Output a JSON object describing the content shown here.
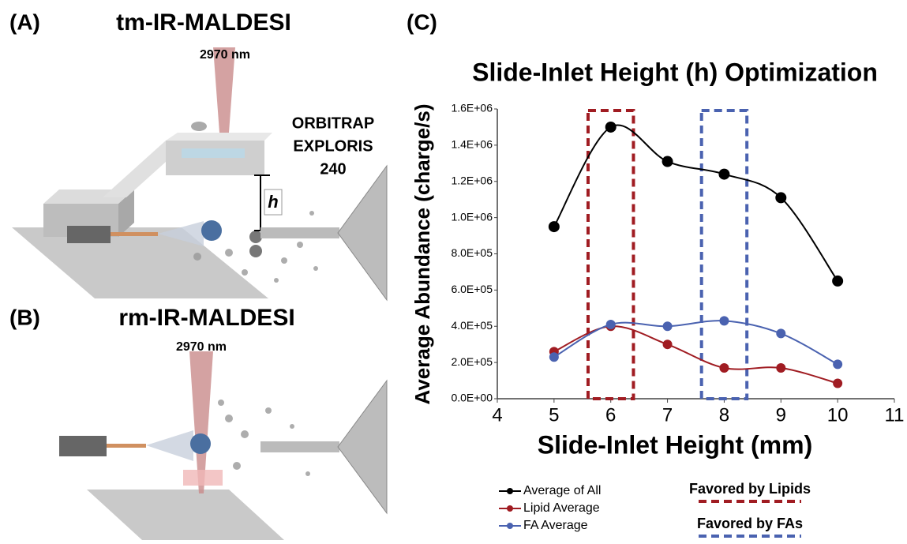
{
  "panels": {
    "a_label": "(A)",
    "a_title": "tm-IR-MALDESI",
    "a_wavelength": "2970 nm",
    "instrument": [
      "ORBITRAP",
      "EXPLORIS",
      "240"
    ],
    "height_symbol": "h",
    "b_label": "(B)",
    "b_title": "rm-IR-MALDESI",
    "b_wavelength": "2970 nm",
    "c_label": "(C)"
  },
  "chart_data": {
    "type": "line",
    "title": "Slide-Inlet Height (h) Optimization",
    "x_label": "Slide-Inlet Height (mm)",
    "y_label": "Average Abundance (charge/s)",
    "x": [
      5,
      6,
      7,
      8,
      9,
      10
    ],
    "series": [
      {
        "name": "Average of All",
        "color": "#000000",
        "values": [
          950000,
          1500000,
          1310000,
          1240000,
          1110000,
          650000
        ]
      },
      {
        "name": "Lipid Average",
        "color": "#a01c22",
        "values": [
          260000,
          400000,
          300000,
          170000,
          170000,
          85000
        ]
      },
      {
        "name": "FA Average",
        "color": "#4a62b0",
        "values": [
          230000,
          410000,
          400000,
          430000,
          360000,
          190000
        ]
      }
    ],
    "xlim": [
      4,
      11
    ],
    "xticks": [
      4,
      5,
      6,
      7,
      8,
      9,
      10,
      11
    ],
    "ylim": [
      0,
      1600000
    ],
    "yticks": [
      {
        "value": 0,
        "label": "0.0E+00"
      },
      {
        "value": 200000,
        "label": "2.0E+05"
      },
      {
        "value": 400000,
        "label": "4.0E+05"
      },
      {
        "value": 600000,
        "label": "6.0E+05"
      },
      {
        "value": 800000,
        "label": "8.0E+05"
      },
      {
        "value": 1000000,
        "label": "1.0E+06"
      },
      {
        "value": 1200000,
        "label": "1.2E+06"
      },
      {
        "value": 1400000,
        "label": "1.4E+06"
      },
      {
        "value": 1600000,
        "label": "1.6E+06"
      }
    ],
    "highlights": [
      {
        "label": "Favored by Lipids",
        "color": "#a01c22",
        "x": [
          5.6,
          6.4
        ]
      },
      {
        "label": "Favored by FAs",
        "color": "#4a62b0",
        "x": [
          7.6,
          8.4
        ]
      }
    ],
    "grid": false,
    "legend": "bottom"
  }
}
